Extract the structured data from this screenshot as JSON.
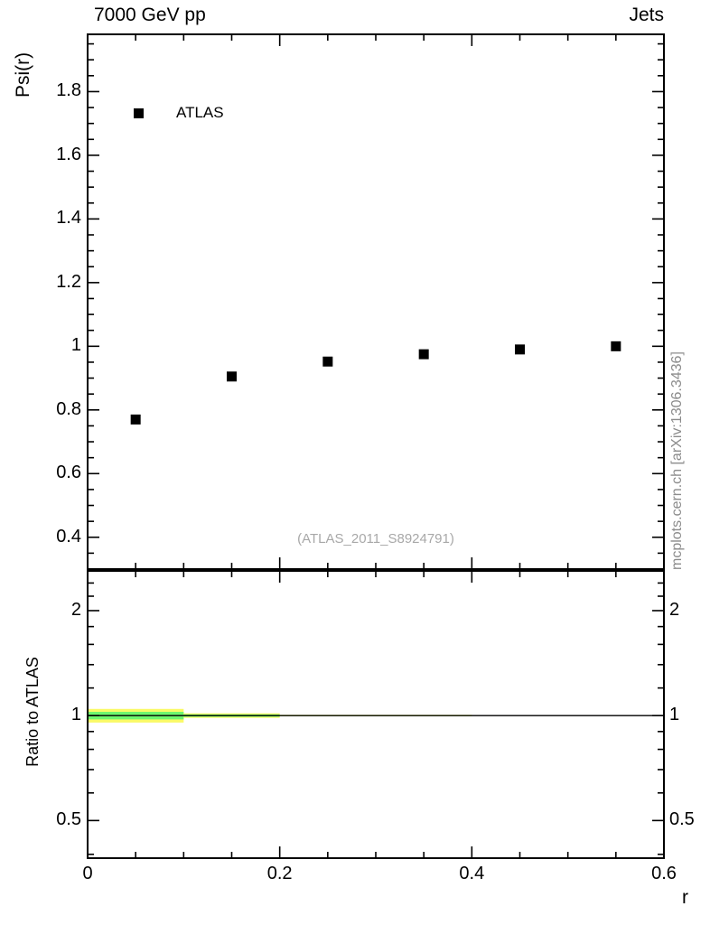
{
  "header": {
    "title_left": "7000 GeV pp",
    "title_right": "Jets"
  },
  "axes": {
    "y_label": "Psi(r)",
    "ratio_y_label": "Ratio to ATLAS",
    "x_label": "r"
  },
  "legend": {
    "label": "ATLAS"
  },
  "watermark": "(ATLAS_2011_S8924791)",
  "side_label": "mcplots.cern.ch [arXiv:1306.3436]",
  "chart_data": {
    "type": "scatter",
    "xlabel": "r",
    "ylabel": "Psi(r)",
    "grid": false,
    "xlim": [
      0,
      0.6
    ],
    "ylim": [
      0.3,
      1.98
    ],
    "x_major_ticks": [
      0,
      0.2,
      0.4,
      0.6
    ],
    "x_tick_labels": [
      "0",
      "0.2",
      "0.4",
      "0.6"
    ],
    "x_minor_step": 0.05,
    "y_major_ticks": [
      0.4,
      0.6,
      0.8,
      1,
      1.2,
      1.4,
      1.6,
      1.8
    ],
    "y_tick_labels": [
      "0.4",
      "0.6",
      "0.8",
      "1",
      "1.2",
      "1.4",
      "1.6",
      "1.8"
    ],
    "y_minor_step": 0.05,
    "series": [
      {
        "name": "ATLAS",
        "marker": "filled-square",
        "color": "#000000",
        "x": [
          0.05,
          0.15,
          0.25,
          0.35,
          0.45,
          0.55
        ],
        "y": [
          0.77,
          0.905,
          0.952,
          0.975,
          0.99,
          1.0
        ]
      }
    ],
    "ratio_panel": {
      "ylabel": "Ratio to ATLAS",
      "yscale": "log",
      "ylim": [
        0.39,
        2.6
      ],
      "y_major_ticks": [
        0.5,
        1,
        2
      ],
      "y_tick_labels": [
        "0.5",
        "1",
        "2"
      ],
      "y_minor_ticks": [
        0.4,
        0.6,
        0.7,
        0.8,
        0.9,
        1.2,
        1.4,
        1.6,
        1.8,
        2.2,
        2.4
      ],
      "reference_line_y": 1,
      "band_outer_color": "#fafa66",
      "band_inner_color": "#6ef56e",
      "bands": [
        {
          "x0": 0.0,
          "x1": 0.1,
          "outer_low": 0.955,
          "outer_high": 1.045,
          "inner_low": 0.975,
          "inner_high": 1.025
        },
        {
          "x0": 0.1,
          "x1": 0.2,
          "outer_low": 0.985,
          "outer_high": 1.015,
          "inner_low": 0.992,
          "inner_high": 1.008
        },
        {
          "x0": 0.2,
          "x1": 0.4,
          "outer_low": 0.995,
          "outer_high": 1.005,
          "inner_low": 0.997,
          "inner_high": 1.003
        }
      ]
    }
  }
}
